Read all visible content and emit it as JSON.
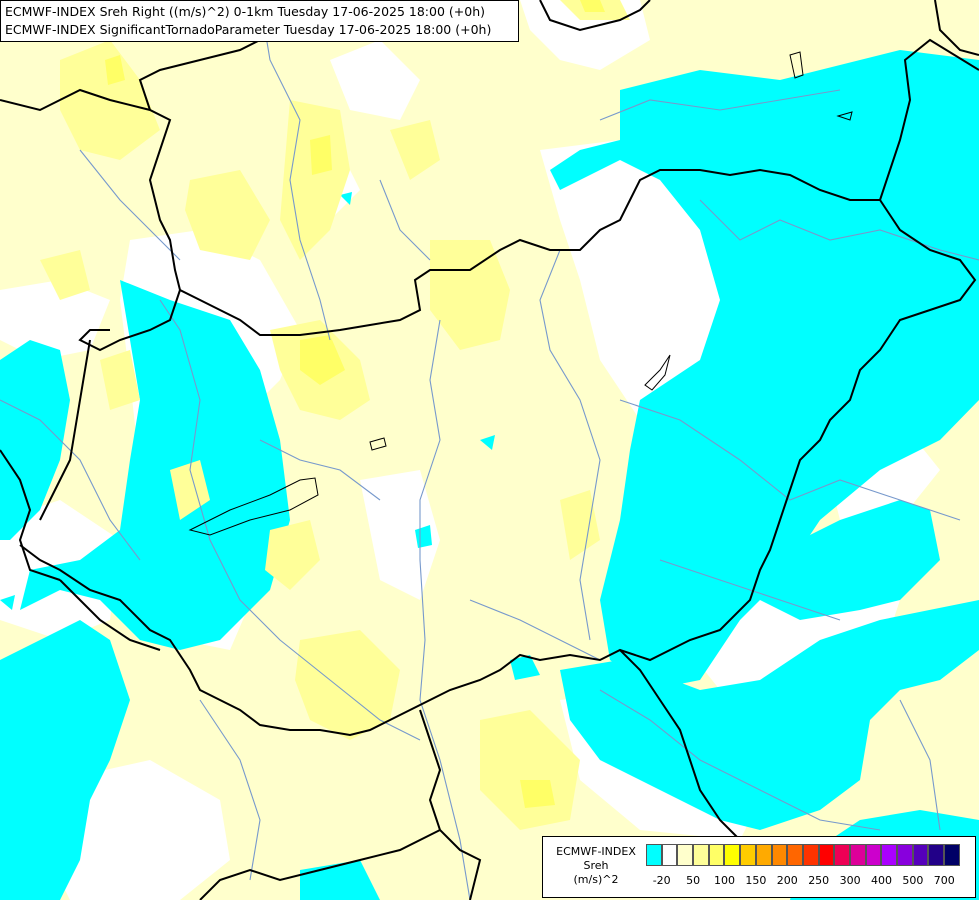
{
  "titles": {
    "line1": "ECMWF-INDEX Sreh Right ((m/s)^2) 0-1km Tuesday 17-06-2025 18:00 (+0h)",
    "line2": "ECMWF-INDEX SignificantTornadoParameter Tuesday 17-06-2025 18:00 (+0h)"
  },
  "legend": {
    "label_line1": "ECMWF-INDEX",
    "label_line2": "Sreh",
    "label_line3": "(m/s)^2",
    "colors": [
      "#00ffff",
      "#ffffff",
      "#ffffcc",
      "#ffff99",
      "#ffff66",
      "#ffff00",
      "#ffcc00",
      "#ffaa00",
      "#ff8800",
      "#ff6600",
      "#ff3300",
      "#ff0000",
      "#ee0055",
      "#dd0099",
      "#cc00cc",
      "#aa00ff",
      "#8800dd",
      "#5500bb",
      "#220088",
      "#000066"
    ],
    "ticks": [
      {
        "label": "-20",
        "index": 1
      },
      {
        "label": "50",
        "index": 3
      },
      {
        "label": "100",
        "index": 5
      },
      {
        "label": "150",
        "index": 7
      },
      {
        "label": "200",
        "index": 9
      },
      {
        "label": "250",
        "index": 11
      },
      {
        "label": "300",
        "index": 13
      },
      {
        "label": "400",
        "index": 15
      },
      {
        "label": "500",
        "index": 17
      },
      {
        "label": "700",
        "index": 19
      }
    ]
  },
  "map_colors": {
    "cyan": "#00ffff",
    "pale_yellow": "#ffffcc",
    "light_yellow": "#ffff99",
    "yellow": "#ffff66",
    "white": "#ffffff",
    "border": "#000000",
    "river": "#7799cc"
  }
}
